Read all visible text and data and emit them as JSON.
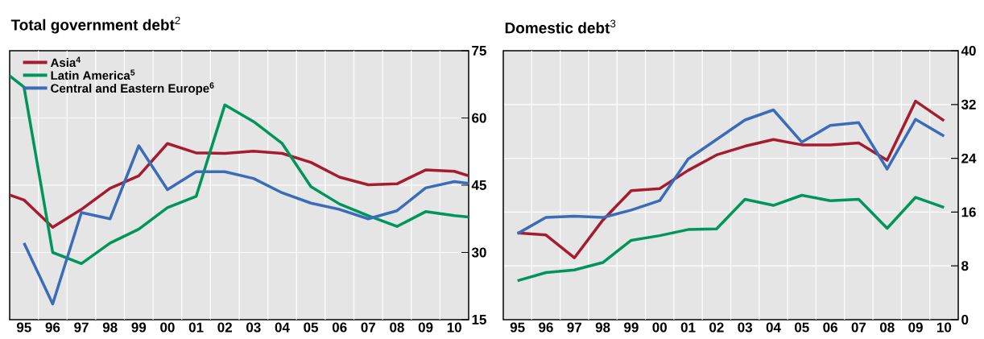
{
  "chart_data": [
    {
      "type": "line",
      "title": "**Total government debt**$^{2}$",
      "grid": true,
      "legend": "top left",
      "x": [
        "1995-01",
        "1995-07",
        "1996-07",
        "1997-07",
        "1998-07",
        "1999-07",
        "2000-07",
        "2001-07",
        "2002-07",
        "2003-07",
        "2004-07",
        "2005-07",
        "2006-07",
        "2007-07",
        "2008-07",
        "2009-07",
        "2010-07",
        "2011-01"
      ],
      "xlim": [
        "1995-01",
        "2011-01"
      ],
      "xticks": [
        {
          "value": "1995-07",
          "label": "95"
        },
        {
          "value": "1996-07",
          "label": "96"
        },
        {
          "value": "1997-07",
          "label": "97"
        },
        {
          "value": "1998-07",
          "label": "98"
        },
        {
          "value": "1999-07",
          "label": "99"
        },
        {
          "value": "2000-07",
          "label": "00"
        },
        {
          "value": "2001-07",
          "label": "01"
        },
        {
          "value": "2002-07",
          "label": "02"
        },
        {
          "value": "2003-07",
          "label": "03"
        },
        {
          "value": "2004-07",
          "label": "04"
        },
        {
          "value": "2005-07",
          "label": "05"
        },
        {
          "value": "2006-07",
          "label": "06"
        },
        {
          "value": "2007-07",
          "label": "07"
        },
        {
          "value": "2008-07",
          "label": "08"
        },
        {
          "value": "2009-07",
          "label": "09"
        },
        {
          "value": "2010-07",
          "label": "10"
        },
        {
          "value": "1996-01",
          "label": null
        },
        {
          "value": "1997-01",
          "label": null
        },
        {
          "value": "1998-01",
          "label": null
        },
        {
          "value": "1999-01",
          "label": null
        },
        {
          "value": "2000-01",
          "label": null
        },
        {
          "value": "2001-01",
          "label": null
        },
        {
          "value": "2002-01",
          "label": null
        },
        {
          "value": "2003-01",
          "label": null
        },
        {
          "value": "2004-01",
          "label": null
        },
        {
          "value": "2005-01",
          "label": null
        },
        {
          "value": "2006-01",
          "label": null
        },
        {
          "value": "2007-01",
          "label": null
        },
        {
          "value": "2008-01",
          "label": null
        },
        {
          "value": "2009-01",
          "label": null
        },
        {
          "value": "2010-01",
          "label": null
        }
      ],
      "ylim": [
        15,
        75
      ],
      "yticks": [
        15,
        30,
        45,
        60,
        75
      ],
      "series": [
        {
          "name": "Asia$^{4}$",
          "color": "#a51c30",
          "values": [
            42.8,
            41.7,
            35.6,
            39.6,
            44.3,
            47.1,
            54.3,
            52.2,
            52.1,
            52.6,
            52.1,
            50.1,
            46.8,
            45.1,
            45.3,
            48.4,
            48.1,
            47.1
          ]
        },
        {
          "name": "Latin America$^{5}$",
          "color": "#00955a",
          "values": [
            69.4,
            66.9,
            30.0,
            27.5,
            32.1,
            35.2,
            40.0,
            42.5,
            62.9,
            59.2,
            54.3,
            44.7,
            40.8,
            38.2,
            35.8,
            39.1,
            38.2,
            37.9
          ]
        },
        {
          "name": "Central and Eastern Europe$^{6}$",
          "color": "#3a6cb8",
          "values": [
            null,
            32.1,
            18.5,
            38.9,
            37.5,
            53.8,
            44.0,
            48.0,
            48.0,
            46.5,
            43.3,
            41.0,
            39.6,
            37.5,
            39.3,
            44.4,
            45.8,
            45.4
          ]
        }
      ]
    },
    {
      "type": "line",
      "title": "**Domestic debt**$^{3}$",
      "grid": true,
      "x": [
        "1995-07",
        "1996-07",
        "1997-07",
        "1998-07",
        "1999-07",
        "2000-07",
        "2001-07",
        "2002-07",
        "2003-07",
        "2004-07",
        "2005-07",
        "2006-07",
        "2007-07",
        "2008-07",
        "2009-07",
        "2010-07"
      ],
      "xlim": [
        "1995-01",
        "2011-01"
      ],
      "xticks": [
        {
          "value": "1995-07",
          "label": "95"
        },
        {
          "value": "1996-07",
          "label": "96"
        },
        {
          "value": "1997-07",
          "label": "97"
        },
        {
          "value": "1998-07",
          "label": "98"
        },
        {
          "value": "1999-07",
          "label": "99"
        },
        {
          "value": "2000-07",
          "label": "00"
        },
        {
          "value": "2001-07",
          "label": "01"
        },
        {
          "value": "2002-07",
          "label": "02"
        },
        {
          "value": "2003-07",
          "label": "03"
        },
        {
          "value": "2004-07",
          "label": "04"
        },
        {
          "value": "2005-07",
          "label": "05"
        },
        {
          "value": "2006-07",
          "label": "06"
        },
        {
          "value": "2007-07",
          "label": "07"
        },
        {
          "value": "2008-07",
          "label": "08"
        },
        {
          "value": "2009-07",
          "label": "09"
        },
        {
          "value": "2010-07",
          "label": "10"
        },
        {
          "value": "1996-01",
          "label": null
        },
        {
          "value": "1997-01",
          "label": null
        },
        {
          "value": "1998-01",
          "label": null
        },
        {
          "value": "1999-01",
          "label": null
        },
        {
          "value": "2000-01",
          "label": null
        },
        {
          "value": "2001-01",
          "label": null
        },
        {
          "value": "2002-01",
          "label": null
        },
        {
          "value": "2003-01",
          "label": null
        },
        {
          "value": "2004-01",
          "label": null
        },
        {
          "value": "2005-01",
          "label": null
        },
        {
          "value": "2006-01",
          "label": null
        },
        {
          "value": "2007-01",
          "label": null
        },
        {
          "value": "2008-01",
          "label": null
        },
        {
          "value": "2009-01",
          "label": null
        },
        {
          "value": "2010-01",
          "label": null
        }
      ],
      "ylim": [
        0,
        40
      ],
      "yticks": [
        0,
        8,
        16,
        24,
        32,
        40
      ],
      "series": [
        {
          "color": "#a51c30",
          "values": [
            12.9,
            12.6,
            9.2,
            14.8,
            19.2,
            19.5,
            22.2,
            24.5,
            25.8,
            26.8,
            26.0,
            26.0,
            26.3,
            23.7,
            32.5,
            29.6
          ]
        },
        {
          "color": "#3a6cb8",
          "values": [
            12.8,
            15.2,
            15.4,
            15.2,
            16.3,
            17.7,
            23.9,
            26.8,
            29.7,
            31.2,
            26.4,
            28.9,
            29.3,
            22.4,
            29.8,
            27.3
          ]
        },
        {
          "color": "#00955a",
          "values": [
            5.8,
            7.0,
            7.4,
            8.5,
            11.8,
            12.5,
            13.4,
            13.5,
            17.9,
            17.0,
            18.5,
            17.7,
            17.9,
            13.6,
            18.2,
            16.7
          ]
        }
      ]
    }
  ]
}
